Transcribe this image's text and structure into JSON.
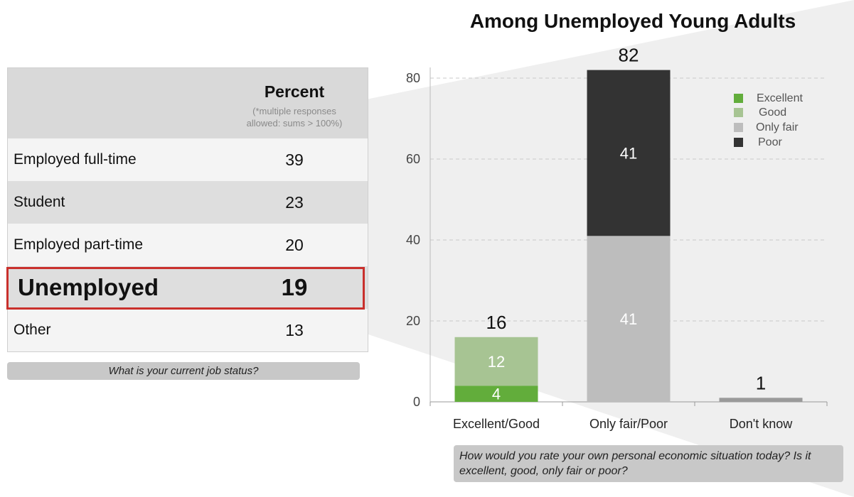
{
  "table": {
    "header": "Percent",
    "note_line1": "(*multiple responses",
    "note_line2": "allowed: sums > 100%)",
    "rows": [
      {
        "label": "Employed full-time",
        "value": "39"
      },
      {
        "label": "Student",
        "value": "23"
      },
      {
        "label": "Employed part-time",
        "value": "20"
      },
      {
        "label": "Unemployed",
        "value": "19"
      },
      {
        "label": "Other",
        "value": "13"
      }
    ],
    "question": "What is your current job status?"
  },
  "chart_question": "How would you rate your own personal economic situation today? Is it excellent, good, only fair or poor?",
  "colors": {
    "excellent": "#62ad3b",
    "good": "#a7c493",
    "only_fair": "#bdbdbd",
    "poor": "#333333",
    "dont_know": "#9a9a9a",
    "highlight": "#c9302c"
  },
  "chart_data": {
    "type": "bar",
    "stacked": true,
    "title": "Among Unemployed Young Adults",
    "categories": [
      "Excellent/Good",
      "Only fair/Poor",
      "Don't know"
    ],
    "series": [
      {
        "name": "Excellent",
        "values": [
          4,
          null,
          null
        ]
      },
      {
        "name": "Good",
        "values": [
          12,
          null,
          null
        ]
      },
      {
        "name": "Only fair",
        "values": [
          null,
          41,
          null
        ]
      },
      {
        "name": "Poor",
        "values": [
          null,
          41,
          null
        ]
      },
      {
        "values": [
          null,
          null,
          1
        ]
      }
    ],
    "totals": [
      "16",
      "82",
      "1"
    ],
    "ylim": [
      0,
      85
    ],
    "yticks": [
      0,
      20,
      40,
      60,
      80
    ],
    "grid": true,
    "legend": "top-right",
    "xlabel": "",
    "ylabel": ""
  }
}
